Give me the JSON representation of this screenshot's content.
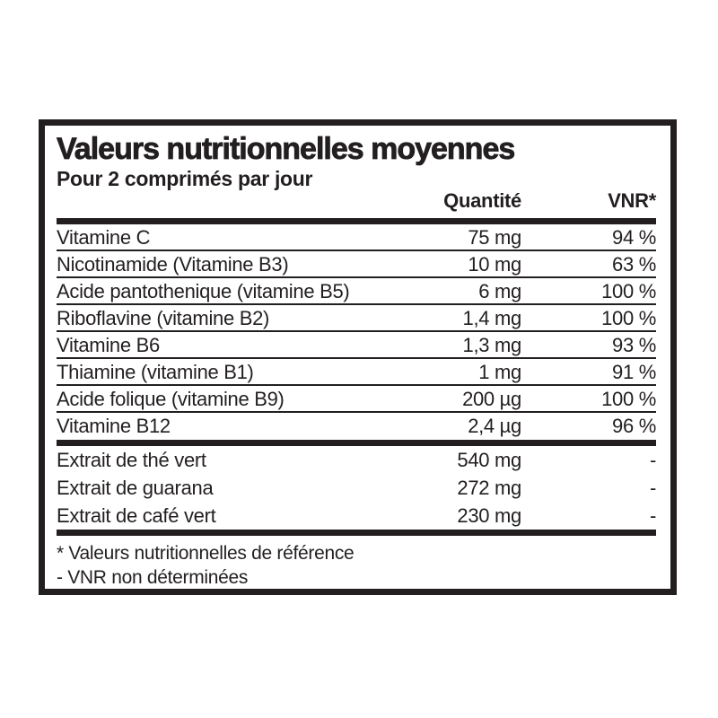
{
  "label": {
    "title": "Valeurs nutritionnelles moyennes",
    "subtitle": "Pour 2 comprimés par jour",
    "columns": {
      "quantity": "Quantité",
      "vnr": "VNR*"
    },
    "vitamins": [
      {
        "label": "Vitamine C",
        "quantity": "75 mg",
        "vnr": "94 %"
      },
      {
        "label": "Nicotinamide (Vitamine B3)",
        "quantity": "10 mg",
        "vnr": "63 %"
      },
      {
        "label": "Acide pantothenique (vitamine B5)",
        "quantity": "6 mg",
        "vnr": "100 %"
      },
      {
        "label": "Riboflavine (vitamine B2)",
        "quantity": "1,4 mg",
        "vnr": "100 %"
      },
      {
        "label": "Vitamine B6",
        "quantity": "1,3 mg",
        "vnr": "93 %"
      },
      {
        "label": "Thiamine (vitamine B1)",
        "quantity": "1 mg",
        "vnr": "91 %"
      },
      {
        "label": "Acide folique (vitamine B9)",
        "quantity": "200 µg",
        "vnr": "100 %"
      },
      {
        "label": "Vitamine B12",
        "quantity": "2,4 µg",
        "vnr": "96 %"
      }
    ],
    "extracts": [
      {
        "label": "Extrait de thé vert",
        "quantity": "540 mg",
        "vnr": "-"
      },
      {
        "label": "Extrait de guarana",
        "quantity": "272 mg",
        "vnr": "-"
      },
      {
        "label": "Extrait de café vert",
        "quantity": "230 mg",
        "vnr": "-"
      }
    ],
    "footnotes": {
      "reference": "* Valeurs nutritionnelles de référence",
      "undetermined": "- VNR non déterminées"
    },
    "colors": {
      "text": "#231f20",
      "background": "#ffffff"
    }
  }
}
